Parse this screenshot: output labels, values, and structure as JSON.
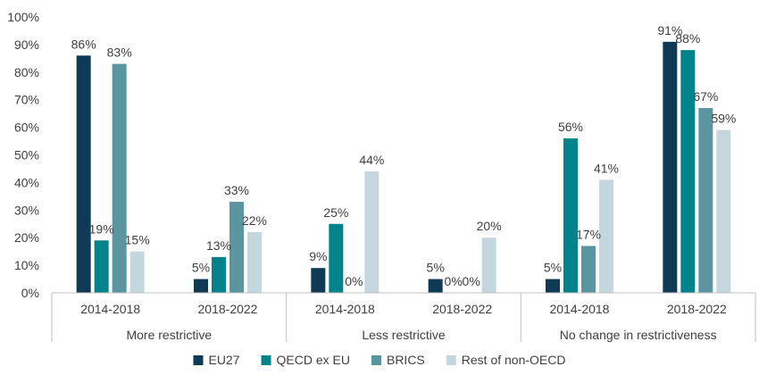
{
  "chart_data": {
    "type": "bar",
    "groups": [
      {
        "label": "More restrictive",
        "periods": [
          "2014-2018",
          "2018-2022"
        ]
      },
      {
        "label": "Less restrictive",
        "periods": [
          "2014-2018",
          "2018-2022"
        ]
      },
      {
        "label": "No change in restrictiveness",
        "periods": [
          "2014-2018",
          "2018-2022"
        ]
      }
    ],
    "categories": [
      "2014-2018",
      "2018-2022",
      "2014-2018",
      "2018-2022",
      "2014-2018",
      "2018-2022"
    ],
    "series": [
      {
        "name": "EU27",
        "color": "#0e3a55",
        "values": [
          86,
          5,
          9,
          5,
          5,
          91
        ],
        "labels": [
          "86%",
          "5%",
          "9%",
          "5%",
          "5%",
          "91%"
        ]
      },
      {
        "name": "QECD ex EU",
        "color": "#00838a",
        "values": [
          19,
          13,
          25,
          0,
          56,
          88
        ],
        "labels": [
          "19%",
          "13%",
          "25%",
          "0%",
          "56%",
          "88%"
        ]
      },
      {
        "name": "BRICS",
        "color": "#5b96a0",
        "values": [
          83,
          33,
          0,
          0,
          17,
          67
        ],
        "labels": [
          "83%",
          "33%",
          "0%",
          "0%",
          "17%",
          "67%"
        ]
      },
      {
        "name": "Rest of non-OECD",
        "color": "#c4d6de",
        "values": [
          15,
          22,
          44,
          20,
          41,
          59
        ],
        "labels": [
          "15%",
          "22%",
          "44%",
          "20%",
          "41%",
          "59%"
        ]
      }
    ],
    "y_ticks": [
      "0%",
      "10%",
      "20%",
      "30%",
      "40%",
      "50%",
      "60%",
      "70%",
      "80%",
      "90%",
      "100%"
    ],
    "ylim": [
      0,
      100
    ],
    "grid": false,
    "legend_position": "bottom"
  }
}
